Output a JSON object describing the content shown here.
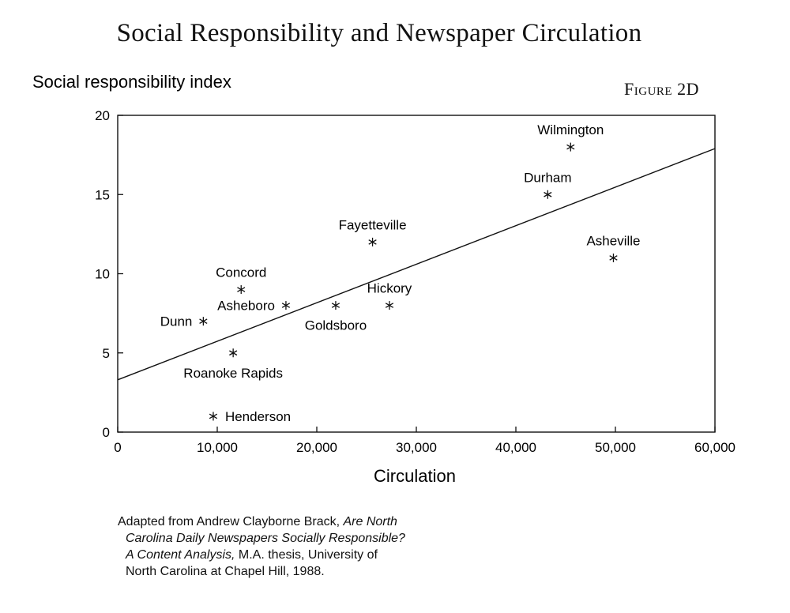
{
  "chart_data": {
    "type": "scatter",
    "title": "Social Responsibility and Newspaper Circulation",
    "figure_label": "Figure 2D",
    "xlabel": "Circulation",
    "ylabel": "Social responsibility index",
    "xlim": [
      0,
      60000
    ],
    "ylim": [
      0,
      20
    ],
    "x_ticks": [
      0,
      10000,
      20000,
      30000,
      40000,
      50000,
      60000
    ],
    "x_tick_labels": [
      "0",
      "10,000",
      "20,000",
      "30,000",
      "40,000",
      "50,000",
      "60,000"
    ],
    "y_ticks": [
      0,
      5,
      10,
      15,
      20
    ],
    "y_tick_labels": [
      "0",
      "5",
      "10",
      "15",
      "20"
    ],
    "grid": false,
    "legend": "none",
    "points": [
      {
        "label": "Wilmington",
        "x": 45500,
        "y": 18,
        "label_pos": "above"
      },
      {
        "label": "Durham",
        "x": 43200,
        "y": 15,
        "label_pos": "above"
      },
      {
        "label": "Fayetteville",
        "x": 25600,
        "y": 12,
        "label_pos": "above"
      },
      {
        "label": "Asheville",
        "x": 49800,
        "y": 11,
        "label_pos": "above"
      },
      {
        "label": "Concord",
        "x": 12400,
        "y": 9,
        "label_pos": "above"
      },
      {
        "label": "Asheboro",
        "x": 16900,
        "y": 8,
        "label_pos": "left"
      },
      {
        "label": "Goldsboro",
        "x": 21900,
        "y": 8,
        "label_pos": "below"
      },
      {
        "label": "Hickory",
        "x": 27300,
        "y": 8,
        "label_pos": "above"
      },
      {
        "label": "Dunn",
        "x": 8600,
        "y": 7,
        "label_pos": "left"
      },
      {
        "label": "Roanoke Rapids",
        "x": 11600,
        "y": 5,
        "label_pos": "below"
      },
      {
        "label": "Henderson",
        "x": 9600,
        "y": 1,
        "label_pos": "right"
      }
    ],
    "trendline": {
      "x": [
        0,
        60000
      ],
      "y": [
        3.3,
        17.9
      ]
    }
  },
  "caption": {
    "line1_plain": "Adapted from Andrew Clayborne Brack, ",
    "line1_italic": "Are North",
    "line2_italic": "Carolina Daily Newspapers Socially Responsible?",
    "line3_italic": "A Content Analysis,",
    "line3_plain": " M.A. thesis, University of",
    "line4_plain": "North Carolina at Chapel Hill, 1988."
  }
}
